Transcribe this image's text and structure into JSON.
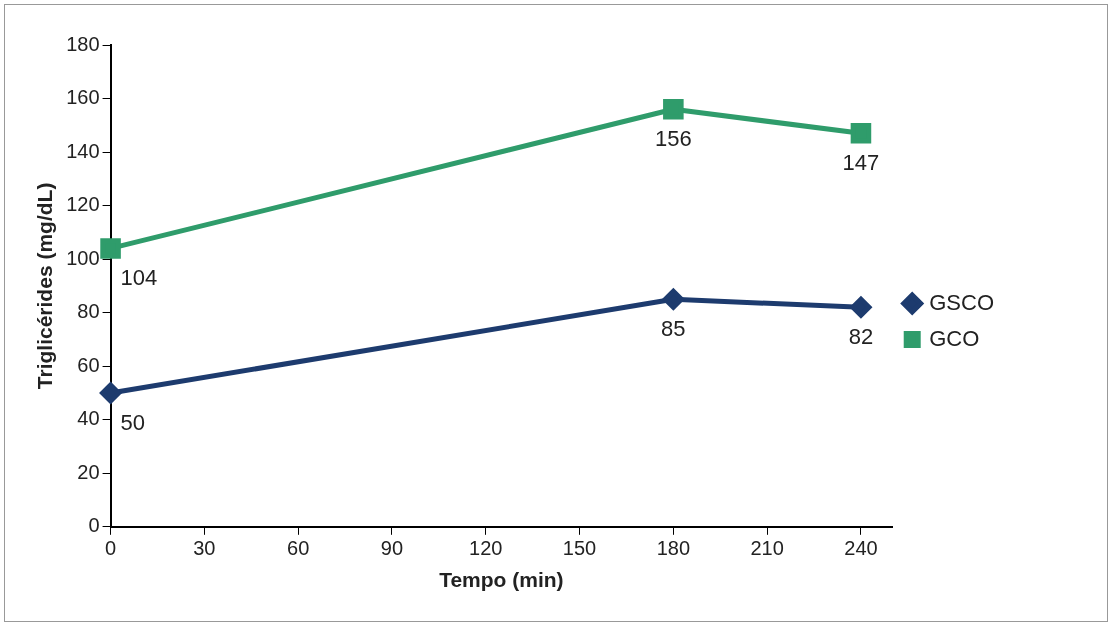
{
  "chart_data": {
    "type": "line",
    "xlabel": "Tempo (min)",
    "ylabel": "Triglicérides (mg/dL)",
    "x": [
      0,
      180,
      240
    ],
    "series": [
      {
        "name": "GSCO",
        "color": "#1d3b6e",
        "values": [
          50,
          85,
          82
        ],
        "marker": "diamond"
      },
      {
        "name": "GCO",
        "color": "#2f9c6b",
        "values": [
          104,
          156,
          147
        ],
        "marker": "square"
      }
    ],
    "xlim": [
      0,
      250
    ],
    "xticks": [
      0,
      30,
      60,
      90,
      120,
      150,
      180,
      210,
      240
    ],
    "ylim": [
      0,
      180
    ],
    "yticks": [
      0,
      20,
      40,
      60,
      80,
      100,
      120,
      140,
      160,
      180
    ],
    "grid": false,
    "legend": "right",
    "data_labels": true,
    "line_style": "solid"
  }
}
